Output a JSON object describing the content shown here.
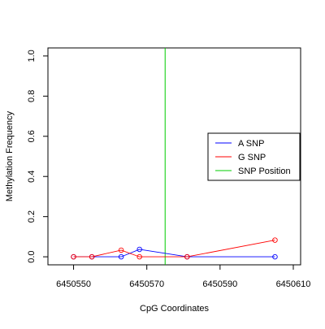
{
  "chart_data": {
    "type": "line",
    "xlabel": "CpG Coordinates",
    "ylabel": "Methylation Frequency",
    "xlim": [
      6450543,
      6450612
    ],
    "ylim": [
      -0.04,
      1.04
    ],
    "x_ticks": [
      6450550,
      6450570,
      6450590,
      6450610
    ],
    "y_ticks": [
      0.0,
      0.2,
      0.4,
      0.6,
      0.8,
      1.0
    ],
    "x_tick_labels": [
      "6450550",
      "6450570",
      "6450590",
      "6450610"
    ],
    "y_tick_labels": [
      "0.0",
      "0.2",
      "0.4",
      "0.6",
      "0.8",
      "1.0"
    ],
    "legend_position": "right",
    "series": [
      {
        "name": "A SNP",
        "color": "#0000ff",
        "x": [
          6450550,
          6450555,
          6450563,
          6450568,
          6450581,
          6450605
        ],
        "y": [
          0.0,
          0.0,
          0.0,
          0.037,
          0.0,
          0.0
        ]
      },
      {
        "name": "G SNP",
        "color": "#ff0000",
        "x": [
          6450550,
          6450555,
          6450563,
          6450568,
          6450581,
          6450605
        ],
        "y": [
          0.0,
          0.0,
          0.033,
          0.0,
          0.0,
          0.083
        ]
      }
    ],
    "vlines": [
      {
        "name": "SNP Position",
        "x": 6450575,
        "color": "#00cc00"
      }
    ]
  }
}
